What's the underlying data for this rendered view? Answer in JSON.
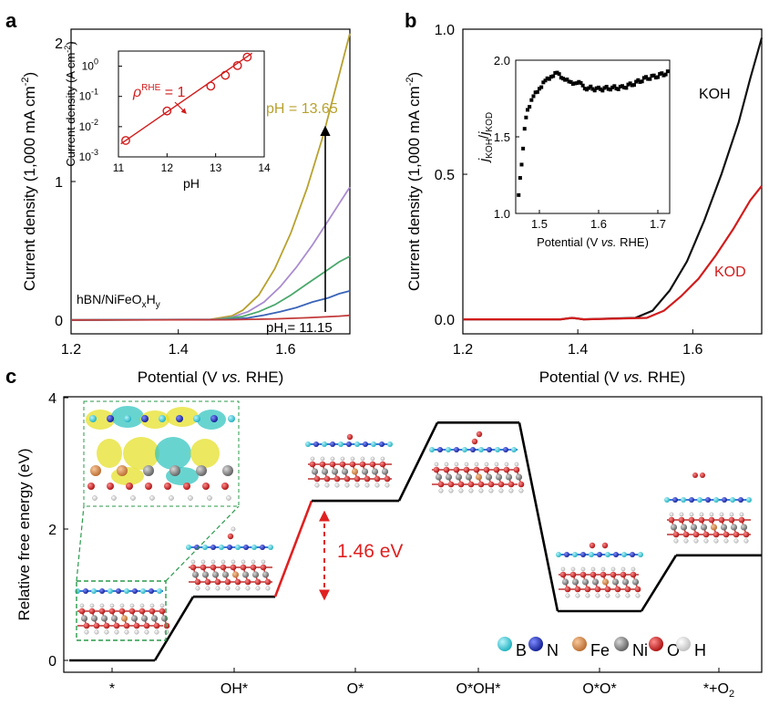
{
  "panels": {
    "a": {
      "letter": "a"
    },
    "b": {
      "letter": "b"
    },
    "c": {
      "letter": "c"
    }
  },
  "chart_data": [
    {
      "id": "a",
      "type": "line",
      "title": "",
      "xlabel_pre": "Potential (V ",
      "xlabel_it": "vs.",
      "xlabel_post": " RHE)",
      "ylabel_pre": "Current density (1,000 mA cm",
      "ylabel_sup": "-2",
      "ylabel_post": ")",
      "xlim": [
        1.2,
        1.72
      ],
      "ylim": [
        -0.1,
        2.1
      ],
      "xticks": [
        "1.2",
        "1.4",
        "1.6"
      ],
      "yticks": [
        "0",
        "1",
        "2"
      ],
      "sample_label": "hBN/NiFeOxHy",
      "annotations": {
        "top": "pH = 13.65",
        "bottom": "pH = 11.15"
      },
      "colors": {
        "13.65": "#b8a12e",
        "13.2": "#a98bd0",
        "12.9": "#4aa86b",
        "12.0": "#3a64b8",
        "11.15": "#c23a3a"
      },
      "series": [
        {
          "name": "pH 13.65",
          "color": "#b8a12e",
          "x": [
            1.2,
            1.46,
            1.5,
            1.52,
            1.55,
            1.58,
            1.61,
            1.64,
            1.67,
            1.7,
            1.72
          ],
          "y": [
            0,
            0.005,
            0.03,
            0.07,
            0.18,
            0.37,
            0.63,
            0.95,
            1.33,
            1.77,
            2.07
          ]
        },
        {
          "name": "pH 13.2",
          "color": "#a98bd0",
          "x": [
            1.2,
            1.47,
            1.5,
            1.53,
            1.56,
            1.59,
            1.62,
            1.65,
            1.68,
            1.7,
            1.72
          ],
          "y": [
            0,
            0.004,
            0.02,
            0.06,
            0.13,
            0.24,
            0.38,
            0.54,
            0.72,
            0.84,
            0.96
          ]
        },
        {
          "name": "pH 12.9",
          "color": "#4aa86b",
          "x": [
            1.2,
            1.47,
            1.52,
            1.55,
            1.58,
            1.61,
            1.64,
            1.67,
            1.7,
            1.72
          ],
          "y": [
            0,
            0.003,
            0.025,
            0.06,
            0.11,
            0.18,
            0.26,
            0.34,
            0.42,
            0.46
          ]
        },
        {
          "name": "pH 12.0",
          "color": "#3a64b8",
          "x": [
            1.2,
            1.49,
            1.53,
            1.56,
            1.59,
            1.62,
            1.65,
            1.68,
            1.7,
            1.72
          ],
          "y": [
            0,
            0.003,
            0.015,
            0.035,
            0.06,
            0.09,
            0.13,
            0.16,
            0.19,
            0.21
          ]
        },
        {
          "name": "pH 11.15",
          "color": "#c23a3a",
          "x": [
            1.2,
            1.5,
            1.58,
            1.64,
            1.7,
            1.72
          ],
          "y": [
            0,
            0.002,
            0.008,
            0.016,
            0.028,
            0.034
          ]
        }
      ],
      "inset": {
        "type": "scatter",
        "xlabel": "pH",
        "ylabel_pre": "Current density (A cm",
        "ylabel_sup": "-2",
        "ylabel_post": ")",
        "xlim": [
          11,
          14
        ],
        "ylog_range": [
          -3,
          0.5
        ],
        "xticks": [
          "11",
          "12",
          "13",
          "14"
        ],
        "ytick_base": "10",
        "ytick_exps": [
          "-3",
          "-2",
          "-1",
          "0"
        ],
        "annotation_rho": "ρ",
        "annotation_sup": "RHE",
        "annotation_eq": " = 1",
        "points": {
          "x": [
            11.15,
            12.0,
            12.9,
            13.2,
            13.45,
            13.65
          ],
          "y": [
            0.0035,
            0.033,
            0.22,
            0.5,
            1.05,
            2.0
          ]
        },
        "fit": {
          "x": [
            11.05,
            13.75
          ],
          "y": [
            0.0027,
            2.7
          ]
        }
      }
    },
    {
      "id": "b",
      "type": "line",
      "xlabel_pre": "Potential (V ",
      "xlabel_it": "vs.",
      "xlabel_post": " RHE)",
      "ylabel_pre": "Current density (1,000 mA cm",
      "ylabel_sup": "-2",
      "ylabel_post": ")",
      "xlim": [
        1.2,
        1.72
      ],
      "ylim": [
        -0.05,
        1.0
      ],
      "xticks": [
        "1.2",
        "1.4",
        "1.6"
      ],
      "yticks": [
        "0.0",
        "0.5",
        "1.0"
      ],
      "series": [
        {
          "name": "KOH",
          "color": "#111111",
          "x": [
            1.2,
            1.37,
            1.39,
            1.41,
            1.5,
            1.53,
            1.56,
            1.59,
            1.62,
            1.65,
            1.68,
            1.7,
            1.72
          ],
          "y": [
            0,
            0,
            0.005,
            0,
            0.005,
            0.03,
            0.1,
            0.2,
            0.34,
            0.5,
            0.68,
            0.83,
            0.97
          ]
        },
        {
          "name": "KOD",
          "color": "#d21c1c",
          "x": [
            1.2,
            1.37,
            1.39,
            1.41,
            1.52,
            1.55,
            1.58,
            1.61,
            1.64,
            1.67,
            1.7,
            1.72
          ],
          "y": [
            0,
            0,
            0.005,
            0,
            0.005,
            0.03,
            0.08,
            0.14,
            0.22,
            0.31,
            0.41,
            0.46
          ]
        }
      ],
      "inset": {
        "type": "scatter",
        "xlabel_pre": "Potential (V ",
        "xlabel_it": "vs.",
        "xlabel_post": " RHE)",
        "ylabel_j": "j",
        "ylabel_sub1": "KOH",
        "ylabel_sep": "/",
        "ylabel_j2": "j",
        "ylabel_sub2": "KOD",
        "xlim": [
          1.46,
          1.72
        ],
        "ylim": [
          1.0,
          2.0
        ],
        "xticks": [
          "1.5",
          "1.6",
          "1.7"
        ],
        "yticks": [
          "1.0",
          "1.5",
          "2.0"
        ],
        "profile": {
          "x": [
            1.465,
            1.47,
            1.475,
            1.48,
            1.49,
            1.5,
            1.51,
            1.52,
            1.53,
            1.54,
            1.55,
            1.56,
            1.57,
            1.58,
            1.6,
            1.62,
            1.64,
            1.66,
            1.68,
            1.7,
            1.72
          ],
          "y": [
            1.12,
            1.32,
            1.55,
            1.68,
            1.76,
            1.82,
            1.86,
            1.9,
            1.91,
            1.89,
            1.85,
            1.86,
            1.84,
            1.82,
            1.81,
            1.82,
            1.82,
            1.85,
            1.88,
            1.9,
            1.92
          ]
        }
      },
      "labels": {
        "koh": "KOH",
        "kod": "KOD"
      }
    },
    {
      "id": "c",
      "type": "line",
      "title": "",
      "ylabel": "Relative free energy (eV)",
      "ylim": [
        0,
        4
      ],
      "yticks": [
        "0",
        "2",
        "4"
      ],
      "steps": [
        {
          "label": "*",
          "energy": 0.0
        },
        {
          "label": "OH*",
          "energy": 0.97
        },
        {
          "label": "O*",
          "energy": 2.43
        },
        {
          "label": "O*OH*",
          "energy": 3.62
        },
        {
          "label": "O*O*",
          "energy": 0.75
        },
        {
          "label": "*+O",
          "label_sub": "2",
          "energy": 1.6
        }
      ],
      "barrier_label": "1.46 eV",
      "legend": [
        {
          "label": "B",
          "color": "#27c7d6"
        },
        {
          "label": "N",
          "color": "#1b2bb0"
        },
        {
          "label": "Fe",
          "color": "#d98a4a"
        },
        {
          "label": "Ni",
          "color": "#8a8a8a"
        },
        {
          "label": "O",
          "color": "#d11818"
        },
        {
          "label": "H",
          "color": "#e6e6e6"
        }
      ]
    }
  ]
}
